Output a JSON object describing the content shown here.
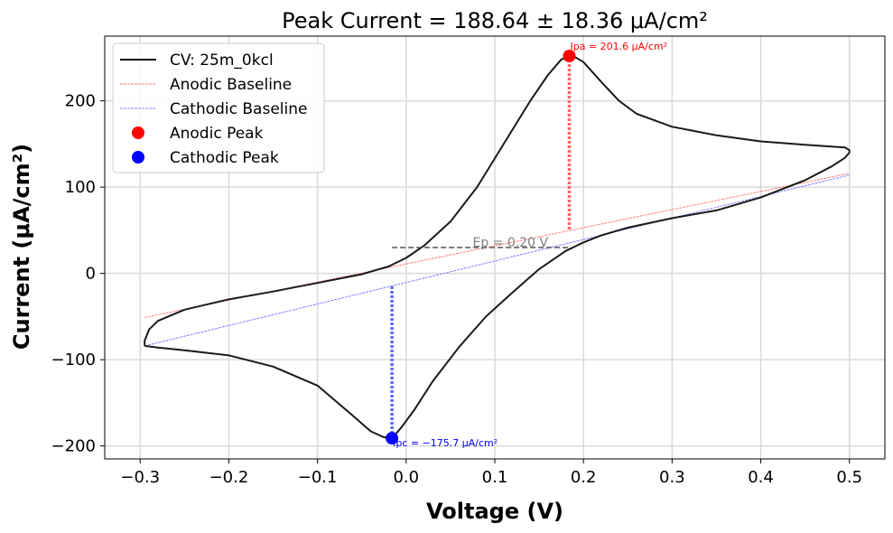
{
  "chart_data": {
    "type": "line",
    "title": "Peak Current = 188.64 ± 18.36 μA/cm²",
    "xlabel": "Voltage (V)",
    "ylabel": "Current (μA/cm²)",
    "xlim": [
      -0.34,
      0.54
    ],
    "ylim": [
      -215,
      275
    ],
    "xticks": [
      -0.3,
      -0.2,
      -0.1,
      0.0,
      0.1,
      0.2,
      0.3,
      0.4,
      0.5
    ],
    "xtick_labels": [
      "−0.3",
      "−0.2",
      "−0.1",
      "0.0",
      "0.1",
      "0.2",
      "0.3",
      "0.4",
      "0.5"
    ],
    "yticks": [
      -200,
      -100,
      0,
      100,
      200
    ],
    "ytick_labels": [
      "−200",
      "−100",
      "0",
      "100",
      "200"
    ],
    "grid": true,
    "legend_position": "top-left",
    "legend": [
      {
        "label": "CV: 25m_0kcl",
        "kind": "line",
        "color": "#000000",
        "dash": "solid"
      },
      {
        "label": "Anodic Baseline",
        "kind": "line",
        "color": "#ff8080",
        "dash": "dashed"
      },
      {
        "label": "Cathodic Baseline",
        "kind": "line",
        "color": "#8080ff",
        "dash": "dashed"
      },
      {
        "label": "Anodic Peak",
        "kind": "marker",
        "color": "#ff0000"
      },
      {
        "label": "Cathodic Peak",
        "kind": "marker",
        "color": "#0000ff"
      }
    ],
    "series": [
      {
        "name": "CV: 25m_0kcl",
        "color": "#1a1a1a",
        "points": [
          [
            -0.295,
            -84
          ],
          [
            -0.295,
            -78
          ],
          [
            -0.29,
            -65
          ],
          [
            -0.28,
            -55
          ],
          [
            -0.25,
            -42
          ],
          [
            -0.2,
            -30
          ],
          [
            -0.15,
            -21
          ],
          [
            -0.1,
            -11
          ],
          [
            -0.05,
            -1
          ],
          [
            -0.02,
            8
          ],
          [
            0.0,
            18
          ],
          [
            0.02,
            32
          ],
          [
            0.05,
            60
          ],
          [
            0.08,
            100
          ],
          [
            0.11,
            150
          ],
          [
            0.14,
            200
          ],
          [
            0.16,
            230
          ],
          [
            0.175,
            248
          ],
          [
            0.185,
            252
          ],
          [
            0.19,
            251
          ],
          [
            0.2,
            245
          ],
          [
            0.22,
            222
          ],
          [
            0.24,
            200
          ],
          [
            0.26,
            185
          ],
          [
            0.3,
            170
          ],
          [
            0.35,
            160
          ],
          [
            0.4,
            153
          ],
          [
            0.45,
            149
          ],
          [
            0.48,
            147
          ],
          [
            0.495,
            146
          ],
          [
            0.5,
            143
          ],
          [
            0.5,
            140
          ],
          [
            0.495,
            134
          ],
          [
            0.48,
            124
          ],
          [
            0.45,
            108
          ],
          [
            0.4,
            88
          ],
          [
            0.35,
            73
          ],
          [
            0.3,
            64
          ],
          [
            0.25,
            53
          ],
          [
            0.22,
            44
          ],
          [
            0.2,
            36
          ],
          [
            0.18,
            26
          ],
          [
            0.15,
            5
          ],
          [
            0.12,
            -22
          ],
          [
            0.09,
            -50
          ],
          [
            0.06,
            -85
          ],
          [
            0.03,
            -125
          ],
          [
            0.01,
            -157
          ],
          [
            -0.005,
            -178
          ],
          [
            -0.015,
            -190
          ],
          [
            -0.025,
            -190
          ],
          [
            -0.04,
            -183
          ],
          [
            -0.06,
            -165
          ],
          [
            -0.1,
            -130
          ],
          [
            -0.15,
            -108
          ],
          [
            -0.2,
            -95
          ],
          [
            -0.25,
            -89
          ],
          [
            -0.28,
            -86
          ],
          [
            -0.295,
            -84
          ]
        ]
      }
    ],
    "anodic_baseline": {
      "x": [
        -0.295,
        0.5
      ],
      "y": [
        -51,
        116
      ],
      "color": "#ff8080"
    },
    "cathodic_baseline": {
      "x": [
        -0.295,
        0.5
      ],
      "y": [
        -84,
        114
      ],
      "color": "#8080ff"
    },
    "anodic_peak": {
      "x": 0.184,
      "y": 252,
      "baseline_y": 51,
      "label": "Ipa = 201.6 μA/cm²",
      "color": "#ff0000"
    },
    "cathodic_peak": {
      "x": -0.016,
      "y": -191,
      "baseline_y": -15,
      "label": "Ipc = −175.7 μA/cm²",
      "color": "#0000ff"
    },
    "ep_line": {
      "x": [
        -0.016,
        0.184
      ],
      "y": 30,
      "label": "Ep = 0.20 V",
      "color": "#555555"
    }
  }
}
